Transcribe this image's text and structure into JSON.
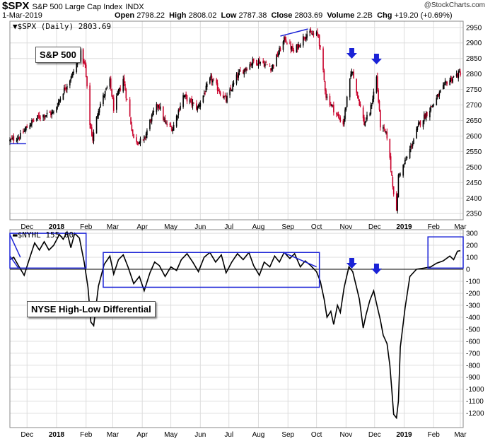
{
  "header": {
    "symbol": "$SPX",
    "name": "S&P 500 Large Cap Index",
    "exchange": "INDX",
    "date": "1-Mar-2019",
    "open_label": "Open",
    "open": "2798.22",
    "high_label": "High",
    "high": "2808.02",
    "low_label": "Low",
    "low": "2787.38",
    "close_label": "Close",
    "close": "2803.69",
    "volume_label": "Volume",
    "volume": "2.2B",
    "chg_label": "Chg",
    "chg": "+19.20 (+0.69%)",
    "logo": "@StockCharts.com"
  },
  "annotations": {
    "spx_label": "S&P 500",
    "nyhl_label": "NYSE High-Low Differential"
  },
  "colors": {
    "up": "#000000",
    "down": "#c8002a",
    "annotation": "#1a22d6",
    "grid": "#dddddd"
  },
  "chart_data": [
    {
      "type": "candlestick",
      "legend": "$SPX (Daily) 2803.69",
      "ylim": [
        2330,
        2970
      ],
      "yticks": [
        2350,
        2400,
        2450,
        2500,
        2550,
        2600,
        2650,
        2700,
        2750,
        2800,
        2850,
        2900,
        2950
      ],
      "x_labels": [
        {
          "label": "Dec",
          "date": "2017-12-01"
        },
        {
          "label": "2018",
          "date": "2018-01-01",
          "bold": true
        },
        {
          "label": "Feb",
          "date": "2018-02-01"
        },
        {
          "label": "Mar",
          "date": "2018-03-01"
        },
        {
          "label": "Apr",
          "date": "2018-04-01"
        },
        {
          "label": "May",
          "date": "2018-05-01"
        },
        {
          "label": "Jun",
          "date": "2018-06-01"
        },
        {
          "label": "Jul",
          "date": "2018-07-01"
        },
        {
          "label": "Aug",
          "date": "2018-08-01"
        },
        {
          "label": "Sep",
          "date": "2018-09-01"
        },
        {
          "label": "Oct",
          "date": "2018-10-01"
        },
        {
          "label": "Nov",
          "date": "2018-11-01"
        },
        {
          "label": "Dec",
          "date": "2018-12-01"
        },
        {
          "label": "2019",
          "date": "2019-01-01",
          "bold": true
        },
        {
          "label": "Feb",
          "date": "2019-02-01"
        },
        {
          "label": "Mar",
          "date": "2019-03-01"
        }
      ],
      "x_range": [
        "2017-11-13",
        "2019-03-04"
      ],
      "close_path": [
        [
          "2017-11-13",
          2585
        ],
        [
          "2017-11-24",
          2600
        ],
        [
          "2017-12-04",
          2640
        ],
        [
          "2017-12-15",
          2665
        ],
        [
          "2017-12-29",
          2675
        ],
        [
          "2018-01-08",
          2745
        ],
        [
          "2018-01-18",
          2800
        ],
        [
          "2018-01-26",
          2865
        ],
        [
          "2018-01-31",
          2825
        ],
        [
          "2018-02-05",
          2640
        ],
        [
          "2018-02-08",
          2590
        ],
        [
          "2018-02-14",
          2690
        ],
        [
          "2018-02-26",
          2775
        ],
        [
          "2018-03-02",
          2690
        ],
        [
          "2018-03-12",
          2785
        ],
        [
          "2018-03-23",
          2590
        ],
        [
          "2018-04-02",
          2580
        ],
        [
          "2018-04-10",
          2655
        ],
        [
          "2018-04-18",
          2705
        ],
        [
          "2018-04-25",
          2640
        ],
        [
          "2018-05-03",
          2625
        ],
        [
          "2018-05-14",
          2730
        ],
        [
          "2018-05-29",
          2690
        ],
        [
          "2018-06-12",
          2785
        ],
        [
          "2018-06-28",
          2715
        ],
        [
          "2018-07-10",
          2795
        ],
        [
          "2018-07-26",
          2840
        ],
        [
          "2018-08-03",
          2840
        ],
        [
          "2018-08-15",
          2820
        ],
        [
          "2018-08-29",
          2915
        ],
        [
          "2018-09-07",
          2870
        ],
        [
          "2018-09-20",
          2930
        ],
        [
          "2018-10-03",
          2925
        ],
        [
          "2018-10-11",
          2730
        ],
        [
          "2018-10-24",
          2660
        ],
        [
          "2018-10-29",
          2640
        ],
        [
          "2018-11-07",
          2815
        ],
        [
          "2018-11-20",
          2640
        ],
        [
          "2018-11-26",
          2675
        ],
        [
          "2018-12-03",
          2790
        ],
        [
          "2018-12-07",
          2635
        ],
        [
          "2018-12-14",
          2600
        ],
        [
          "2018-12-21",
          2420
        ],
        [
          "2018-12-24",
          2350
        ],
        [
          "2018-12-26",
          2470
        ],
        [
          "2019-01-04",
          2530
        ],
        [
          "2019-01-17",
          2640
        ],
        [
          "2019-02-01",
          2705
        ],
        [
          "2019-02-15",
          2775
        ],
        [
          "2019-03-01",
          2804
        ]
      ]
    },
    {
      "type": "line",
      "legend": "$NYHL 155.00",
      "ylim": [
        -1320,
        330
      ],
      "yticks": [
        300,
        200,
        100,
        0,
        -100,
        -200,
        -300,
        -400,
        -500,
        -600,
        -700,
        -800,
        -900,
        -1000,
        -1100,
        -1200
      ],
      "x_range": [
        "2017-11-13",
        "2019-03-04"
      ],
      "points": [
        [
          "2017-11-13",
          80
        ],
        [
          "2017-11-17",
          100
        ],
        [
          "2017-11-22",
          30
        ],
        [
          "2017-11-28",
          -50
        ],
        [
          "2017-12-04",
          100
        ],
        [
          "2017-12-09",
          220
        ],
        [
          "2017-12-14",
          160
        ],
        [
          "2017-12-19",
          230
        ],
        [
          "2017-12-24",
          160
        ],
        [
          "2017-12-29",
          200
        ],
        [
          "2018-01-04",
          290
        ],
        [
          "2018-01-08",
          250
        ],
        [
          "2018-01-12",
          310
        ],
        [
          "2018-01-16",
          180
        ],
        [
          "2018-01-20",
          300
        ],
        [
          "2018-01-25",
          260
        ],
        [
          "2018-01-30",
          60
        ],
        [
          "2018-02-03",
          -150
        ],
        [
          "2018-02-06",
          -440
        ],
        [
          "2018-02-09",
          -470
        ],
        [
          "2018-02-14",
          -140
        ],
        [
          "2018-02-20",
          40
        ],
        [
          "2018-02-26",
          110
        ],
        [
          "2018-03-02",
          -40
        ],
        [
          "2018-03-07",
          80
        ],
        [
          "2018-03-12",
          120
        ],
        [
          "2018-03-17",
          20
        ],
        [
          "2018-03-23",
          -120
        ],
        [
          "2018-03-29",
          -60
        ],
        [
          "2018-04-03",
          -180
        ],
        [
          "2018-04-09",
          -30
        ],
        [
          "2018-04-14",
          60
        ],
        [
          "2018-04-19",
          30
        ],
        [
          "2018-04-25",
          -60
        ],
        [
          "2018-05-01",
          20
        ],
        [
          "2018-05-07",
          -10
        ],
        [
          "2018-05-12",
          80
        ],
        [
          "2018-05-18",
          130
        ],
        [
          "2018-05-24",
          60
        ],
        [
          "2018-05-30",
          -20
        ],
        [
          "2018-06-05",
          100
        ],
        [
          "2018-06-11",
          140
        ],
        [
          "2018-06-17",
          60
        ],
        [
          "2018-06-23",
          120
        ],
        [
          "2018-06-28",
          -30
        ],
        [
          "2018-07-04",
          60
        ],
        [
          "2018-07-10",
          130
        ],
        [
          "2018-07-16",
          80
        ],
        [
          "2018-07-22",
          140
        ],
        [
          "2018-07-27",
          30
        ],
        [
          "2018-08-02",
          -50
        ],
        [
          "2018-08-07",
          60
        ],
        [
          "2018-08-13",
          20
        ],
        [
          "2018-08-18",
          110
        ],
        [
          "2018-08-23",
          60
        ],
        [
          "2018-08-28",
          140
        ],
        [
          "2018-09-03",
          90
        ],
        [
          "2018-09-08",
          130
        ],
        [
          "2018-09-14",
          20
        ],
        [
          "2018-09-19",
          70
        ],
        [
          "2018-09-25",
          30
        ],
        [
          "2018-10-01",
          -20
        ],
        [
          "2018-10-05",
          -100
        ],
        [
          "2018-10-09",
          -250
        ],
        [
          "2018-10-12",
          -400
        ],
        [
          "2018-10-16",
          -350
        ],
        [
          "2018-10-19",
          -460
        ],
        [
          "2018-10-23",
          -300
        ],
        [
          "2018-10-26",
          -360
        ],
        [
          "2018-10-30",
          -150
        ],
        [
          "2018-11-04",
          20
        ],
        [
          "2018-11-08",
          -20
        ],
        [
          "2018-11-12",
          -150
        ],
        [
          "2018-11-15",
          -250
        ],
        [
          "2018-11-19",
          -490
        ],
        [
          "2018-11-22",
          -380
        ],
        [
          "2018-11-26",
          -260
        ],
        [
          "2018-11-30",
          -180
        ],
        [
          "2018-12-04",
          -320
        ],
        [
          "2018-12-07",
          -420
        ],
        [
          "2018-12-10",
          -550
        ],
        [
          "2018-12-14",
          -620
        ],
        [
          "2018-12-17",
          -800
        ],
        [
          "2018-12-19",
          -1000
        ],
        [
          "2018-12-21",
          -1210
        ],
        [
          "2018-12-24",
          -1240
        ],
        [
          "2018-12-26",
          -1100
        ],
        [
          "2018-12-28",
          -650
        ],
        [
          "2019-01-02",
          -320
        ],
        [
          "2019-01-07",
          -60
        ],
        [
          "2019-01-14",
          0
        ],
        [
          "2019-01-22",
          10
        ],
        [
          "2019-01-29",
          20
        ],
        [
          "2019-02-04",
          50
        ],
        [
          "2019-02-11",
          70
        ],
        [
          "2019-02-18",
          110
        ],
        [
          "2019-02-22",
          80
        ],
        [
          "2019-02-26",
          150
        ],
        [
          "2019-03-01",
          155
        ]
      ]
    }
  ]
}
